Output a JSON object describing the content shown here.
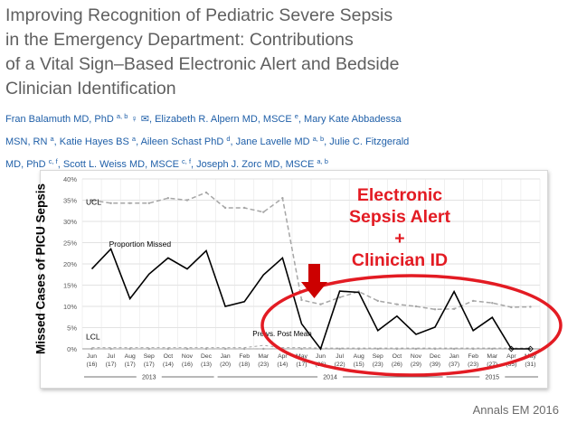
{
  "title_lines": [
    "Improving Recognition of Pediatric Severe Sepsis",
    "in the Emergency Department: Contributions",
    "of a Vital Sign–Based Electronic Alert and Bedside",
    "Clinician Identification"
  ],
  "authors": {
    "line1": {
      "a1": "Fran Balamuth MD, PhD ",
      "s1": "a, b",
      "icons": " ♀ ✉",
      "a2": ", Elizabeth R. Alpern MD, MSCE ",
      "s2": "e",
      "a3": ", Mary Kate Abbadessa"
    },
    "line2": {
      "a1": "MSN, RN ",
      "s1": "a",
      "a2": ", Katie Hayes BS ",
      "s2": "a",
      "a3": ", Aileen Schast PhD ",
      "s3": "d",
      "a4": ", Jane Lavelle MD ",
      "s4": "a, b",
      "a5": ", Julie C. Fitzgerald"
    },
    "line3": {
      "a1": "MD, PhD ",
      "s1": "c, f",
      "a2": ", Scott L. Weiss MD, MSCE ",
      "s2": "c, f",
      "a3": ", Joseph J. Zorc MD, MSCE ",
      "s3": "a, b"
    }
  },
  "y_axis_label": "Missed Cases of PICU Sepsis",
  "alert_lines": [
    "Electronic",
    "Sepsis Alert",
    "+",
    "Clinician ID"
  ],
  "citation": "Annals EM 2016",
  "colors": {
    "highlight": "#e31b23",
    "arrow": "#cc0000",
    "main_line": "#000000",
    "limit_line": "#a6a6a6",
    "author_text": "#1f5fa8"
  },
  "chart_data": {
    "type": "line",
    "categories": [
      "Jun",
      "Jul",
      "Aug",
      "Sep",
      "Oct",
      "Nov",
      "Dec",
      "Jan",
      "Feb",
      "Mar",
      "Apr",
      "May",
      "Jun",
      "Jul",
      "Aug",
      "Sep",
      "Oct",
      "Nov",
      "Dec",
      "Jan",
      "Feb",
      "Mar",
      "Apr",
      "May"
    ],
    "counts": [
      "(16)",
      "(17)",
      "(17)",
      "(17)",
      "(14)",
      "(16)",
      "(13)",
      "(20)",
      "(18)",
      "(23)",
      "(14)",
      "(17)",
      "(26)",
      "(22)",
      "(15)",
      "(23)",
      "(26)",
      "(29)",
      "(39)",
      "(37)",
      "(23)",
      "(27)",
      "(35)",
      "(31)"
    ],
    "year_labels": [
      {
        "label": "2013",
        "start": 0,
        "end": 6
      },
      {
        "label": "2014",
        "start": 7,
        "end": 18
      },
      {
        "label": "2015",
        "start": 19,
        "end": 23
      }
    ],
    "y_ticks": [
      "0%",
      "5%",
      "10%",
      "15%",
      "20%",
      "25%",
      "30%",
      "35%",
      "40%"
    ],
    "ylim": [
      0,
      40
    ],
    "grid": true,
    "series": [
      {
        "name": "Proportion Missed",
        "values": [
          18.8,
          23.5,
          11.8,
          17.6,
          21.4,
          18.8,
          23.1,
          10,
          11.1,
          17.4,
          21.4,
          5.9,
          0,
          13.6,
          13.3,
          4.3,
          7.7,
          3.4,
          5.1,
          13.5,
          4.3,
          7.4,
          0,
          0
        ]
      },
      {
        "name": "UCL",
        "values": [
          35,
          34.3,
          34.3,
          34.3,
          35.5,
          35,
          36.8,
          33.2,
          33.2,
          32.2,
          35.5,
          11.5,
          10.5,
          12.1,
          13.5,
          11.3,
          10.5,
          10,
          9.3,
          9.4,
          11.3,
          10.8,
          9.8,
          9.9
        ]
      },
      {
        "name": "LCL",
        "values": [
          0,
          0,
          0,
          0,
          0,
          0,
          0,
          0,
          0,
          0,
          0,
          0,
          0,
          0,
          0,
          0,
          0,
          0,
          0,
          0,
          0,
          0,
          0,
          0
        ]
      },
      {
        "name": "Pre vs. Post Mean",
        "values": [
          0.3,
          0.3,
          0.3,
          0.3,
          0.3,
          0.3,
          0.3,
          0.3,
          0.3,
          0.8,
          0.3,
          0.3,
          0.2,
          0.2,
          0.2,
          0.2,
          0.2,
          0.2,
          0.2,
          0.2,
          0.2,
          0.2,
          0.2,
          0.2
        ]
      }
    ],
    "annotations": {
      "ucl": "UCL",
      "lcl": "LCL",
      "proportion": "Proportion Missed",
      "mean": "Pre vs. Post Mean"
    }
  }
}
